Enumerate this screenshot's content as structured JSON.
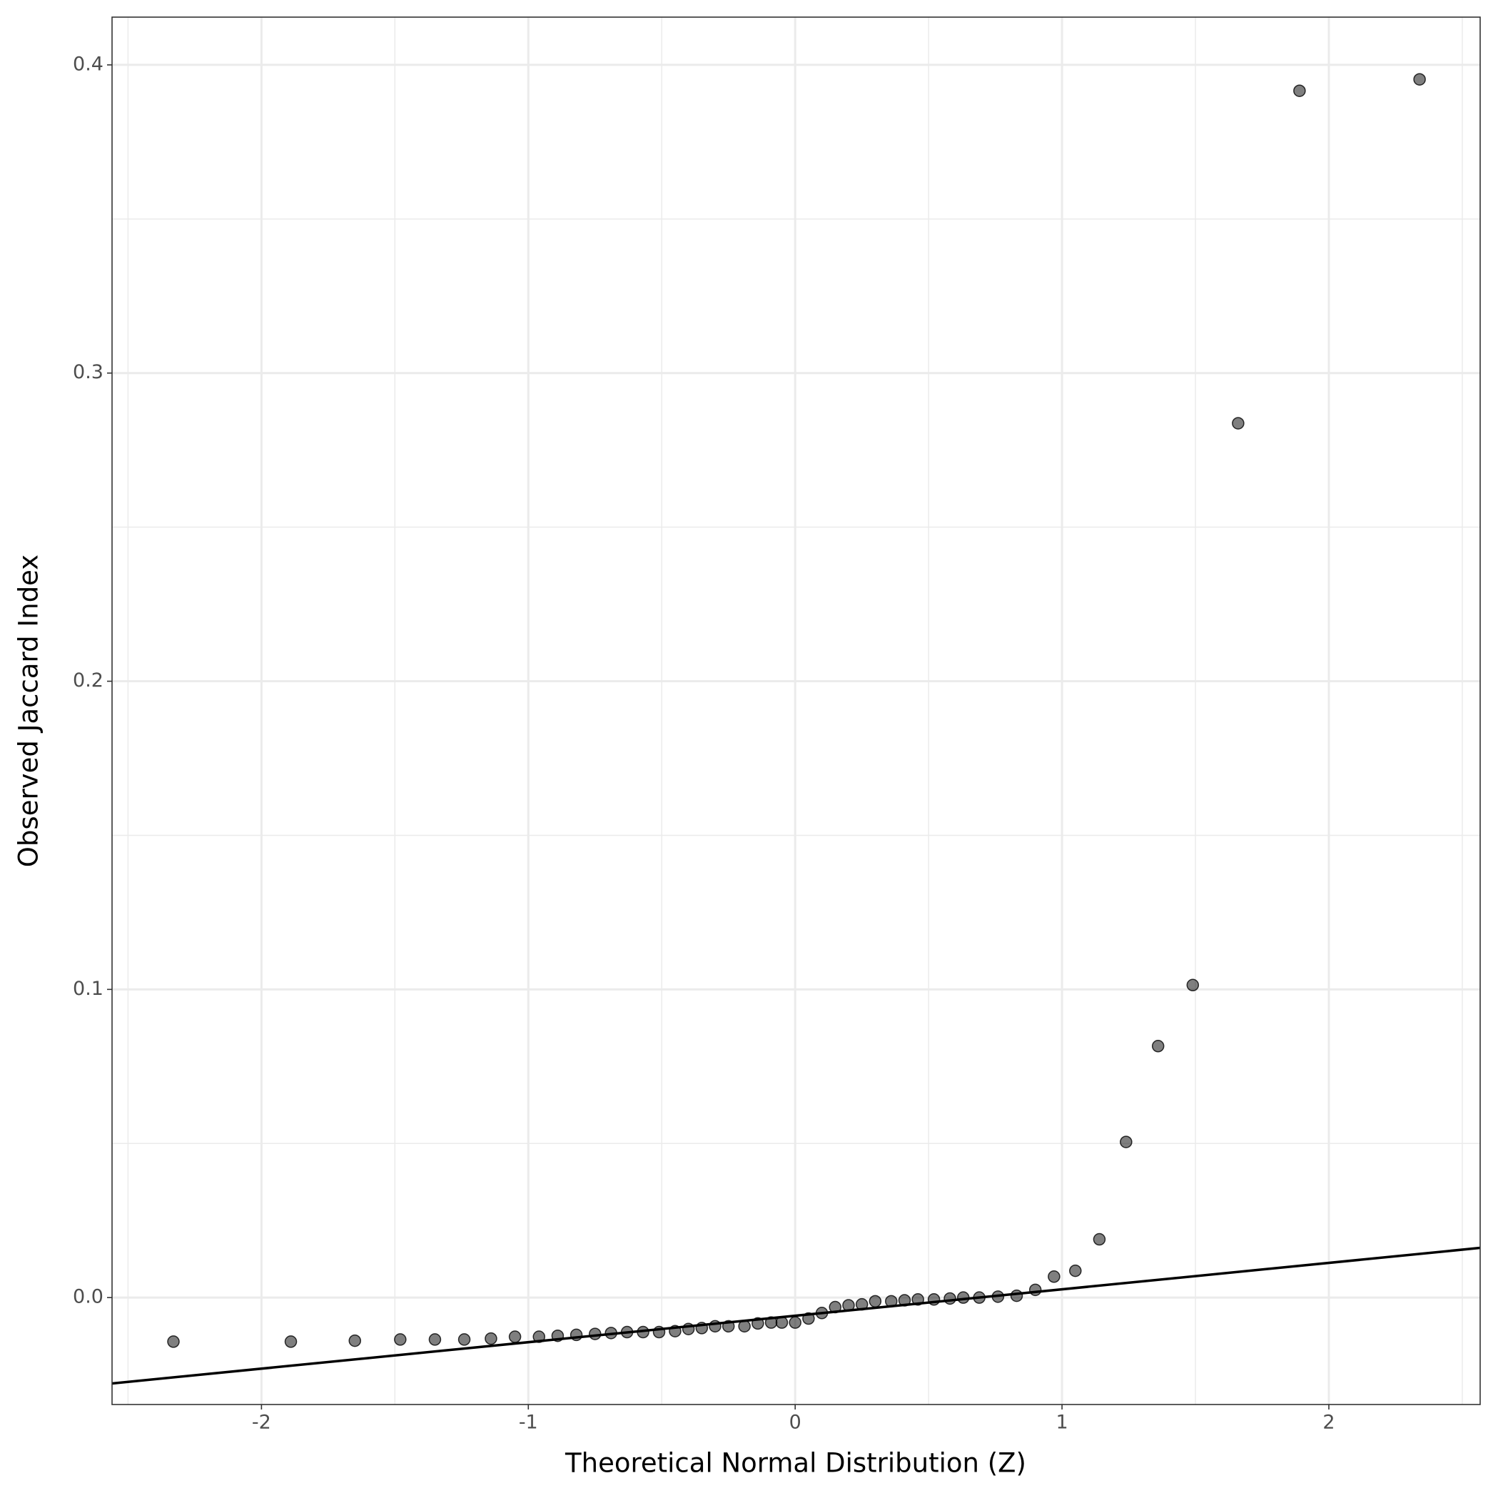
{
  "chart_data": {
    "type": "scatter",
    "x_label": "Theoretical Normal Distribution (Z)",
    "y_label": "Observed Jaccard Index",
    "x": [
      -2.33,
      -1.89,
      -1.65,
      -1.48,
      -1.35,
      -1.24,
      -1.14,
      -1.05,
      -0.96,
      -0.89,
      -0.82,
      -0.75,
      -0.69,
      -0.63,
      -0.57,
      -0.51,
      -0.45,
      -0.4,
      -0.35,
      -0.3,
      -0.25,
      -0.19,
      -0.14,
      -0.09,
      -0.05,
      0.0,
      0.05,
      0.1,
      0.15,
      0.2,
      0.25,
      0.3,
      0.36,
      0.41,
      0.46,
      0.52,
      0.58,
      0.63,
      0.69,
      0.76,
      0.83,
      0.9,
      0.97,
      1.05,
      1.14,
      1.24,
      1.36,
      1.49,
      1.66,
      1.89,
      2.34
    ],
    "values": [
      -0.0143,
      -0.0143,
      -0.014,
      -0.0136,
      -0.0136,
      -0.0136,
      -0.0133,
      -0.0127,
      -0.0127,
      -0.0124,
      -0.0121,
      -0.0118,
      -0.0115,
      -0.0112,
      -0.0112,
      -0.0112,
      -0.0109,
      -0.0102,
      -0.0099,
      -0.0093,
      -0.0093,
      -0.0093,
      -0.0084,
      -0.0081,
      -0.0081,
      -0.0081,
      -0.0068,
      -0.005,
      -0.0031,
      -0.0025,
      -0.0022,
      -0.0012,
      -0.0012,
      -0.0009,
      -0.0006,
      -0.0006,
      -0.0003,
      0,
      0,
      0.0003,
      0.0006,
      0.0025,
      0.0068,
      0.0087,
      0.0189,
      0.0505,
      0.0816,
      0.1014,
      0.2837,
      0.3916,
      0.3953
    ],
    "color": "#000000",
    "alpha": 0.5,
    "reference_line": {
      "intercept": -0.0059,
      "slope": 0.00858,
      "color": "#000000"
    },
    "xlim": [
      -2.56,
      2.567
    ],
    "ylim": [
      -0.0347,
      0.4155
    ],
    "xticks": [
      {
        "value": -2,
        "label": "-2"
      },
      {
        "value": -1,
        "label": "-1"
      },
      0,
      1,
      2
    ],
    "yticks": [
      {
        "value": 0,
        "label": "0.0"
      },
      0.1,
      0.2,
      0.3,
      0.4
    ],
    "minor_xticks": [
      -2.5,
      -1.5,
      -0.5,
      0.5,
      1.5,
      2.5
    ],
    "minor_yticks": [
      0.05,
      0.15,
      0.25,
      0.35
    ],
    "grid": true
  }
}
